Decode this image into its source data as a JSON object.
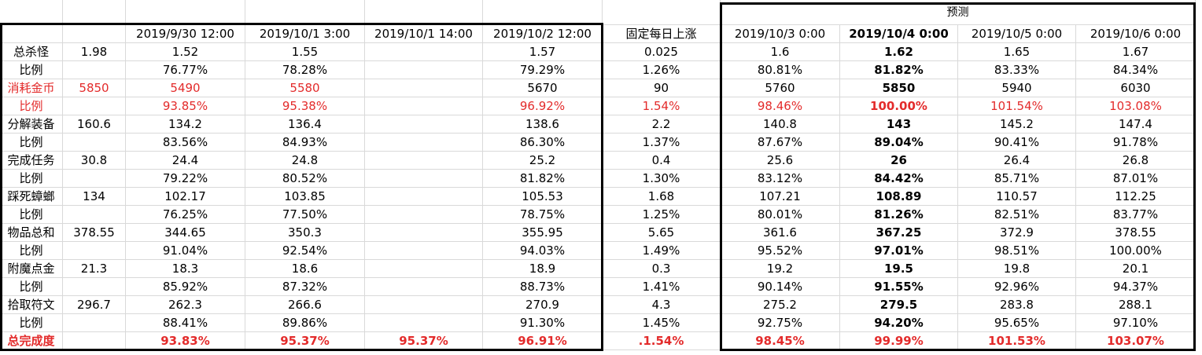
{
  "forecast_title": "预测",
  "header": [
    "",
    "",
    "2019/9/30 12:00",
    "2019/10/1 3:00",
    "2019/10/1 14:00",
    "2019/10/2 12:00",
    "固定每日上涨",
    "2019/10/3 0:00",
    "2019/10/4 0:00",
    "2019/10/5 0:00",
    "2019/10/6 0:00"
  ],
  "rows": [
    {
      "cells": [
        "总杀怪",
        "1.98",
        "1.52",
        "1.55",
        "",
        "1.57",
        "0.025",
        "1.6",
        "1.62",
        "1.65",
        "1.67"
      ],
      "red": false,
      "bold_all": false
    },
    {
      "cells": [
        "比例",
        "",
        "76.77%",
        "78.28%",
        "",
        "79.29%",
        "1.26%",
        "80.81%",
        "81.82%",
        "83.33%",
        "84.34%"
      ],
      "red": false,
      "bold_all": false
    },
    {
      "cells": [
        "消耗金币",
        "5850",
        "5490",
        "5580",
        "",
        "5670",
        "90",
        "5760",
        "5850",
        "5940",
        "6030"
      ],
      "red": "partial",
      "bold_all": false
    },
    {
      "cells": [
        "比例",
        "",
        "93.85%",
        "95.38%",
        "",
        "96.92%",
        "1.54%",
        "98.46%",
        "100.00%",
        "101.54%",
        "103.08%"
      ],
      "red": true,
      "bold_all": false
    },
    {
      "cells": [
        "分解装备",
        "160.6",
        "134.2",
        "136.4",
        "",
        "138.6",
        "2.2",
        "140.8",
        "143",
        "145.2",
        "147.4"
      ],
      "red": false,
      "bold_all": false
    },
    {
      "cells": [
        "比例",
        "",
        "83.56%",
        "84.93%",
        "",
        "86.30%",
        "1.37%",
        "87.67%",
        "89.04%",
        "90.41%",
        "91.78%"
      ],
      "red": false,
      "bold_all": false
    },
    {
      "cells": [
        "完成任务",
        "30.8",
        "24.4",
        "24.8",
        "",
        "25.2",
        "0.4",
        "25.6",
        "26",
        "26.4",
        "26.8"
      ],
      "red": false,
      "bold_all": false
    },
    {
      "cells": [
        "比例",
        "",
        "79.22%",
        "80.52%",
        "",
        "81.82%",
        "1.30%",
        "83.12%",
        "84.42%",
        "85.71%",
        "87.01%"
      ],
      "red": false,
      "bold_all": false
    },
    {
      "cells": [
        "踩死蟑螂",
        "134",
        "102.17",
        "103.85",
        "",
        "105.53",
        "1.68",
        "107.21",
        "108.89",
        "110.57",
        "112.25"
      ],
      "red": false,
      "bold_all": false
    },
    {
      "cells": [
        "比例",
        "",
        "76.25%",
        "77.50%",
        "",
        "78.75%",
        "1.25%",
        "80.01%",
        "81.26%",
        "82.51%",
        "83.77%"
      ],
      "red": false,
      "bold_all": false
    },
    {
      "cells": [
        "物品总和",
        "378.55",
        "344.65",
        "350.3",
        "",
        "355.95",
        "5.65",
        "361.6",
        "367.25",
        "372.9",
        "378.55"
      ],
      "red": false,
      "bold_all": false
    },
    {
      "cells": [
        "比例",
        "",
        "91.04%",
        "92.54%",
        "",
        "94.03%",
        "1.49%",
        "95.52%",
        "97.01%",
        "98.51%",
        "100.00%"
      ],
      "red": false,
      "bold_all": false
    },
    {
      "cells": [
        "附魔点金",
        "21.3",
        "18.3",
        "18.6",
        "",
        "18.9",
        "0.3",
        "19.2",
        "19.5",
        "19.8",
        "20.1"
      ],
      "red": false,
      "bold_all": false
    },
    {
      "cells": [
        "比例",
        "",
        "85.92%",
        "87.32%",
        "",
        "88.73%",
        "1.41%",
        "90.14%",
        "91.55%",
        "92.96%",
        "94.37%"
      ],
      "red": false,
      "bold_all": false
    },
    {
      "cells": [
        "拾取符文",
        "296.7",
        "262.3",
        "266.6",
        "",
        "270.9",
        "4.3",
        "275.2",
        "279.5",
        "283.8",
        "288.1"
      ],
      "red": false,
      "bold_all": false
    },
    {
      "cells": [
        "比例",
        "",
        "88.41%",
        "89.86%",
        "",
        "91.30%",
        "1.45%",
        "92.75%",
        "94.20%",
        "95.65%",
        "97.10%"
      ],
      "red": false,
      "bold_all": false
    },
    {
      "cells": [
        "总完成度",
        "",
        "93.83%",
        "95.37%",
        "95.37%",
        "96.91%",
        ".1.54%",
        "98.45%",
        "99.99%",
        "101.53%",
        "103.07%"
      ],
      "red": true,
      "bold_all": true
    }
  ],
  "colors": {
    "red": "#e32b2b",
    "grid": "#d9d9d9",
    "frame": "#000000"
  }
}
